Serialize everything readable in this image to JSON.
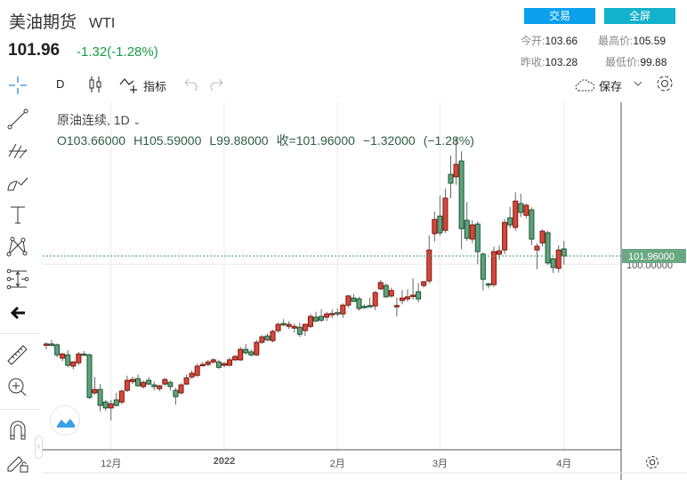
{
  "header": {
    "title": "美油期货",
    "symbol": "WTI",
    "price": "101.96",
    "change": "-1.32(-1.28%)",
    "trade_button": "交易",
    "fullscreen_button": "全屏",
    "stats": [
      {
        "label": "今开:",
        "value": "103.66"
      },
      {
        "label": "最高价:",
        "value": "105.59"
      },
      {
        "label": "昨收:",
        "value": "103.28"
      },
      {
        "label": "最低价:",
        "value": "99.88"
      }
    ]
  },
  "toolbar": {
    "interval": "D",
    "indicators": "指标",
    "save": "保存"
  },
  "legend": {
    "title": "原油连续, 1D",
    "open": "O103.66000",
    "high": "H105.59000",
    "low": "L99.88000",
    "close": "收=101.96000",
    "change": "−1.32000",
    "change_pct": "(−1.28%)"
  },
  "colors": {
    "up": "#d9463a",
    "down": "#5ea37c",
    "trade": "#0aa0ec",
    "fullscreen": "#12b1cc",
    "last_price": "#6aa884"
  },
  "chart_data": {
    "type": "candlestick",
    "x_tick_labels": [
      "12月",
      "2022",
      "2月",
      "3月",
      "4月"
    ],
    "x_tick_index": [
      12,
      33,
      54,
      73,
      96
    ],
    "y_labels": [
      "101.96000",
      "100.00000"
    ],
    "last_price": 101.96,
    "ylim": [
      60,
      133
    ],
    "ohlc": [
      [
        80.7,
        81.3,
        79.6,
        80.9
      ],
      [
        80.9,
        81.9,
        80.3,
        80.8
      ],
      [
        80.7,
        81.0,
        77.7,
        78.3
      ],
      [
        77.5,
        78.8,
        76.8,
        78.5
      ],
      [
        78.3,
        79.4,
        75.3,
        75.8
      ],
      [
        75.6,
        76.8,
        74.9,
        76.6
      ],
      [
        76.4,
        79.0,
        75.8,
        78.5
      ],
      [
        78.5,
        79.2,
        78.0,
        78.3
      ],
      [
        78.3,
        78.6,
        67.7,
        68.1
      ],
      [
        69.2,
        73.0,
        68.8,
        70.0
      ],
      [
        70.0,
        71.3,
        64.7,
        66.2
      ],
      [
        67.0,
        67.5,
        64.9,
        65.6
      ],
      [
        65.6,
        67.5,
        62.6,
        66.6
      ],
      [
        67.5,
        69.2,
        65.9,
        66.2
      ],
      [
        67.0,
        70.0,
        66.5,
        69.6
      ],
      [
        69.8,
        73.3,
        69.4,
        72.2
      ],
      [
        71.9,
        73.0,
        71.3,
        72.4
      ],
      [
        72.6,
        73.6,
        70.7,
        70.9
      ],
      [
        70.7,
        72.2,
        70.2,
        71.7
      ],
      [
        72.2,
        73.0,
        71.1,
        71.3
      ],
      [
        71.1,
        71.9,
        69.8,
        70.7
      ],
      [
        70.2,
        71.1,
        69.6,
        70.9
      ],
      [
        71.3,
        72.8,
        70.9,
        72.4
      ],
      [
        71.7,
        72.2,
        69.8,
        70.7
      ],
      [
        69.8,
        70.4,
        66.4,
        68.3
      ],
      [
        69.2,
        71.5,
        68.8,
        71.1
      ],
      [
        71.3,
        73.6,
        71.1,
        72.8
      ],
      [
        73.0,
        74.6,
        72.6,
        73.9
      ],
      [
        73.4,
        76.2,
        73.0,
        75.6
      ],
      [
        75.8,
        76.6,
        75.5,
        76.0
      ],
      [
        76.0,
        77.1,
        75.6,
        76.6
      ],
      [
        76.6,
        77.5,
        76.2,
        77.1
      ],
      [
        76.6,
        77.1,
        74.9,
        75.3
      ],
      [
        75.8,
        76.6,
        75.3,
        76.2
      ],
      [
        75.8,
        77.7,
        75.6,
        77.1
      ],
      [
        77.1,
        78.3,
        76.8,
        77.9
      ],
      [
        77.1,
        80.2,
        76.8,
        79.6
      ],
      [
        79.6,
        80.9,
        78.3,
        78.8
      ],
      [
        79.0,
        79.6,
        77.9,
        78.3
      ],
      [
        78.3,
        81.9,
        78.0,
        81.3
      ],
      [
        81.3,
        83.0,
        80.9,
        82.6
      ],
      [
        82.8,
        83.4,
        81.5,
        81.9
      ],
      [
        81.7,
        84.3,
        81.3,
        83.9
      ],
      [
        84.1,
        86.0,
        83.6,
        85.6
      ],
      [
        85.8,
        86.8,
        85.1,
        85.6
      ],
      [
        85.1,
        86.4,
        84.5,
        85.6
      ],
      [
        84.7,
        85.8,
        83.6,
        85.1
      ],
      [
        84.9,
        86.0,
        82.6,
        83.2
      ],
      [
        84.1,
        85.8,
        82.8,
        85.6
      ],
      [
        85.1,
        88.1,
        84.7,
        87.5
      ],
      [
        87.3,
        88.6,
        86.2,
        86.4
      ],
      [
        87.5,
        89.2,
        86.2,
        86.6
      ],
      [
        87.3,
        88.6,
        86.4,
        88.1
      ],
      [
        88.0,
        89.2,
        87.0,
        88.2
      ],
      [
        88.4,
        89.4,
        87.5,
        88.3
      ],
      [
        88.1,
        90.6,
        87.1,
        90.2
      ],
      [
        90.2,
        92.6,
        89.6,
        92.4
      ],
      [
        91.9,
        92.8,
        90.9,
        91.1
      ],
      [
        91.7,
        92.2,
        88.9,
        89.4
      ],
      [
        89.9,
        90.4,
        89.4,
        89.8
      ],
      [
        90.1,
        92.0,
        89.6,
        90.0
      ],
      [
        90.0,
        93.6,
        89.0,
        93.2
      ],
      [
        94.1,
        96.2,
        93.8,
        95.6
      ],
      [
        94.9,
        95.4,
        91.9,
        92.2
      ],
      [
        92.4,
        94.4,
        92.0,
        93.7
      ],
      [
        89.9,
        92.0,
        87.5,
        90.1
      ],
      [
        91.3,
        93.8,
        90.4,
        91.9
      ],
      [
        91.7,
        94.0,
        91.0,
        92.2
      ],
      [
        92.4,
        96.6,
        91.5,
        92.6
      ],
      [
        93.4,
        95.5,
        90.9,
        91.7
      ],
      [
        94.9,
        96.0,
        94.4,
        95.8
      ],
      [
        96.0,
        106.9,
        95.4,
        103.4
      ],
      [
        107.3,
        112.6,
        105.4,
        110.7
      ],
      [
        111.5,
        116.4,
        106.8,
        107.5
      ],
      [
        108.1,
        118.1,
        107.5,
        115.8
      ],
      [
        121.5,
        126.0,
        115.8,
        119.4
      ],
      [
        120.9,
        130.3,
        119.0,
        123.9
      ],
      [
        124.7,
        127.0,
        103.6,
        108.5
      ],
      [
        110.5,
        114.9,
        105.6,
        106.2
      ],
      [
        106.0,
        110.5,
        105.0,
        109.4
      ],
      [
        109.6,
        110.2,
        100.0,
        103.0
      ],
      [
        102.4,
        102.8,
        93.7,
        96.4
      ],
      [
        95.3,
        95.6,
        94.2,
        95.1
      ],
      [
        95.1,
        104.2,
        94.5,
        103.0
      ],
      [
        102.4,
        104.5,
        101.0,
        103.2
      ],
      [
        103.4,
        110.8,
        102.4,
        110.0
      ],
      [
        111.1,
        113.7,
        108.6,
        109.4
      ],
      [
        108.8,
        117.2,
        108.0,
        115.1
      ],
      [
        114.5,
        116.9,
        111.3,
        112.4
      ],
      [
        111.7,
        114.5,
        111.0,
        114.1
      ],
      [
        113.0,
        113.6,
        104.6,
        106.0
      ],
      [
        103.4,
        105.0,
        98.8,
        104.3
      ],
      [
        105.1,
        108.3,
        104.3,
        107.9
      ],
      [
        107.5,
        108.0,
        99.8,
        100.3
      ],
      [
        101.3,
        101.6,
        97.9,
        99.2
      ],
      [
        99.0,
        104.5,
        98.0,
        103.4
      ],
      [
        103.66,
        105.59,
        99.88,
        101.96
      ]
    ]
  }
}
